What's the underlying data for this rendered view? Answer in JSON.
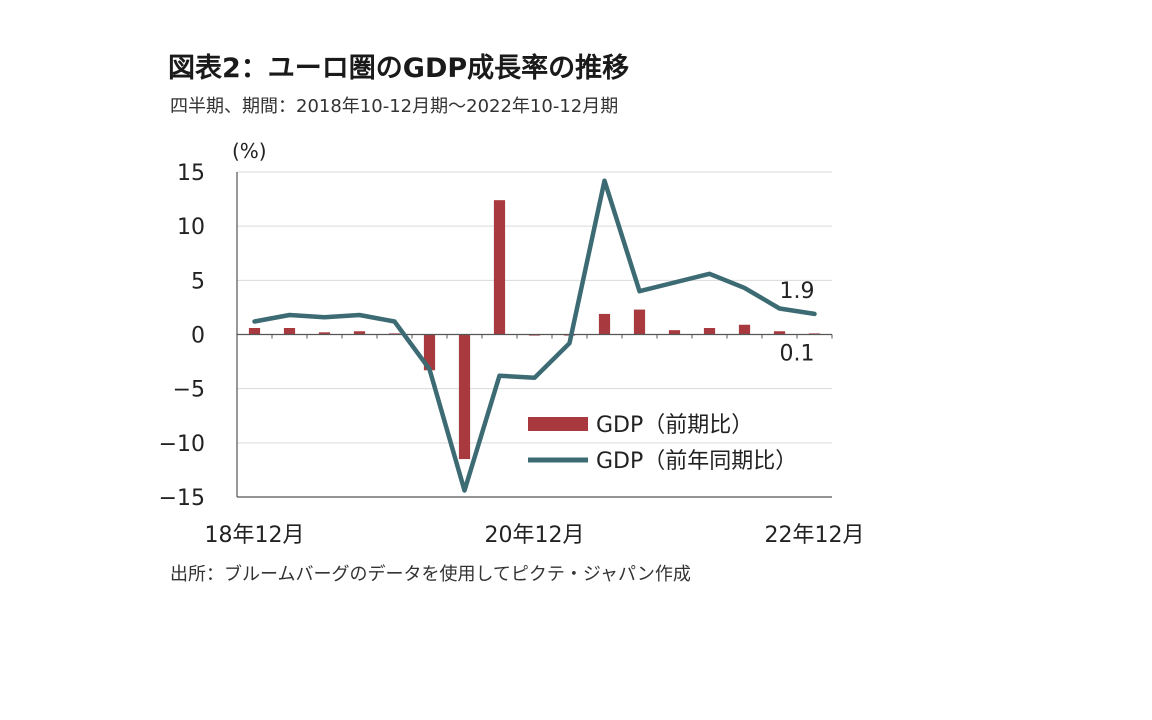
{
  "header": {
    "title": "図表2：ユーロ圏のGDP成長率の推移",
    "subtitle": "四半期、期間：2018年10-12月期～2022年10-12月期"
  },
  "footer": {
    "source": "出所：ブルームバーグのデータを使用してピクテ・ジャパン作成"
  },
  "chart_data": {
    "type": "bar",
    "ylabel": "(%)",
    "ylim": [
      -15,
      15
    ],
    "yticks": [
      15,
      10,
      5,
      0,
      -5,
      -10,
      -15
    ],
    "ytick_labels": [
      "15",
      "10",
      "5",
      "0",
      "−5",
      "−10",
      "−15"
    ],
    "grid": true,
    "legend_position": "bottom-right",
    "x": [
      "2018Q4",
      "2019Q1",
      "2019Q2",
      "2019Q3",
      "2019Q4",
      "2020Q1",
      "2020Q2",
      "2020Q3",
      "2020Q4",
      "2021Q1",
      "2021Q2",
      "2021Q3",
      "2021Q4",
      "2022Q1",
      "2022Q2",
      "2022Q3",
      "2022Q4"
    ],
    "xtick_labels": [
      {
        "index": 0,
        "label": "18年12月"
      },
      {
        "index": 8,
        "label": "20年12月"
      },
      {
        "index": 16,
        "label": "22年12月"
      }
    ],
    "series": [
      {
        "name": "GDP（前期比）",
        "type": "bar",
        "color": "#a83a3f",
        "values": [
          0.6,
          0.6,
          0.2,
          0.3,
          0.1,
          -3.3,
          -11.5,
          12.4,
          -0.1,
          -0.1,
          1.9,
          2.3,
          0.4,
          0.6,
          0.9,
          0.3,
          0.1
        ]
      },
      {
        "name": "GDP（前年同期比）",
        "type": "line",
        "color": "#3d6b73",
        "values": [
          1.2,
          1.8,
          1.6,
          1.8,
          1.2,
          -3.2,
          -14.4,
          -3.8,
          -4.0,
          -0.8,
          14.2,
          4.0,
          4.8,
          5.6,
          4.3,
          2.4,
          1.9
        ]
      }
    ],
    "annotations": [
      {
        "text": "1.9",
        "series": 1,
        "index": 16
      },
      {
        "text": "0.1",
        "series": 0,
        "index": 16
      }
    ]
  }
}
